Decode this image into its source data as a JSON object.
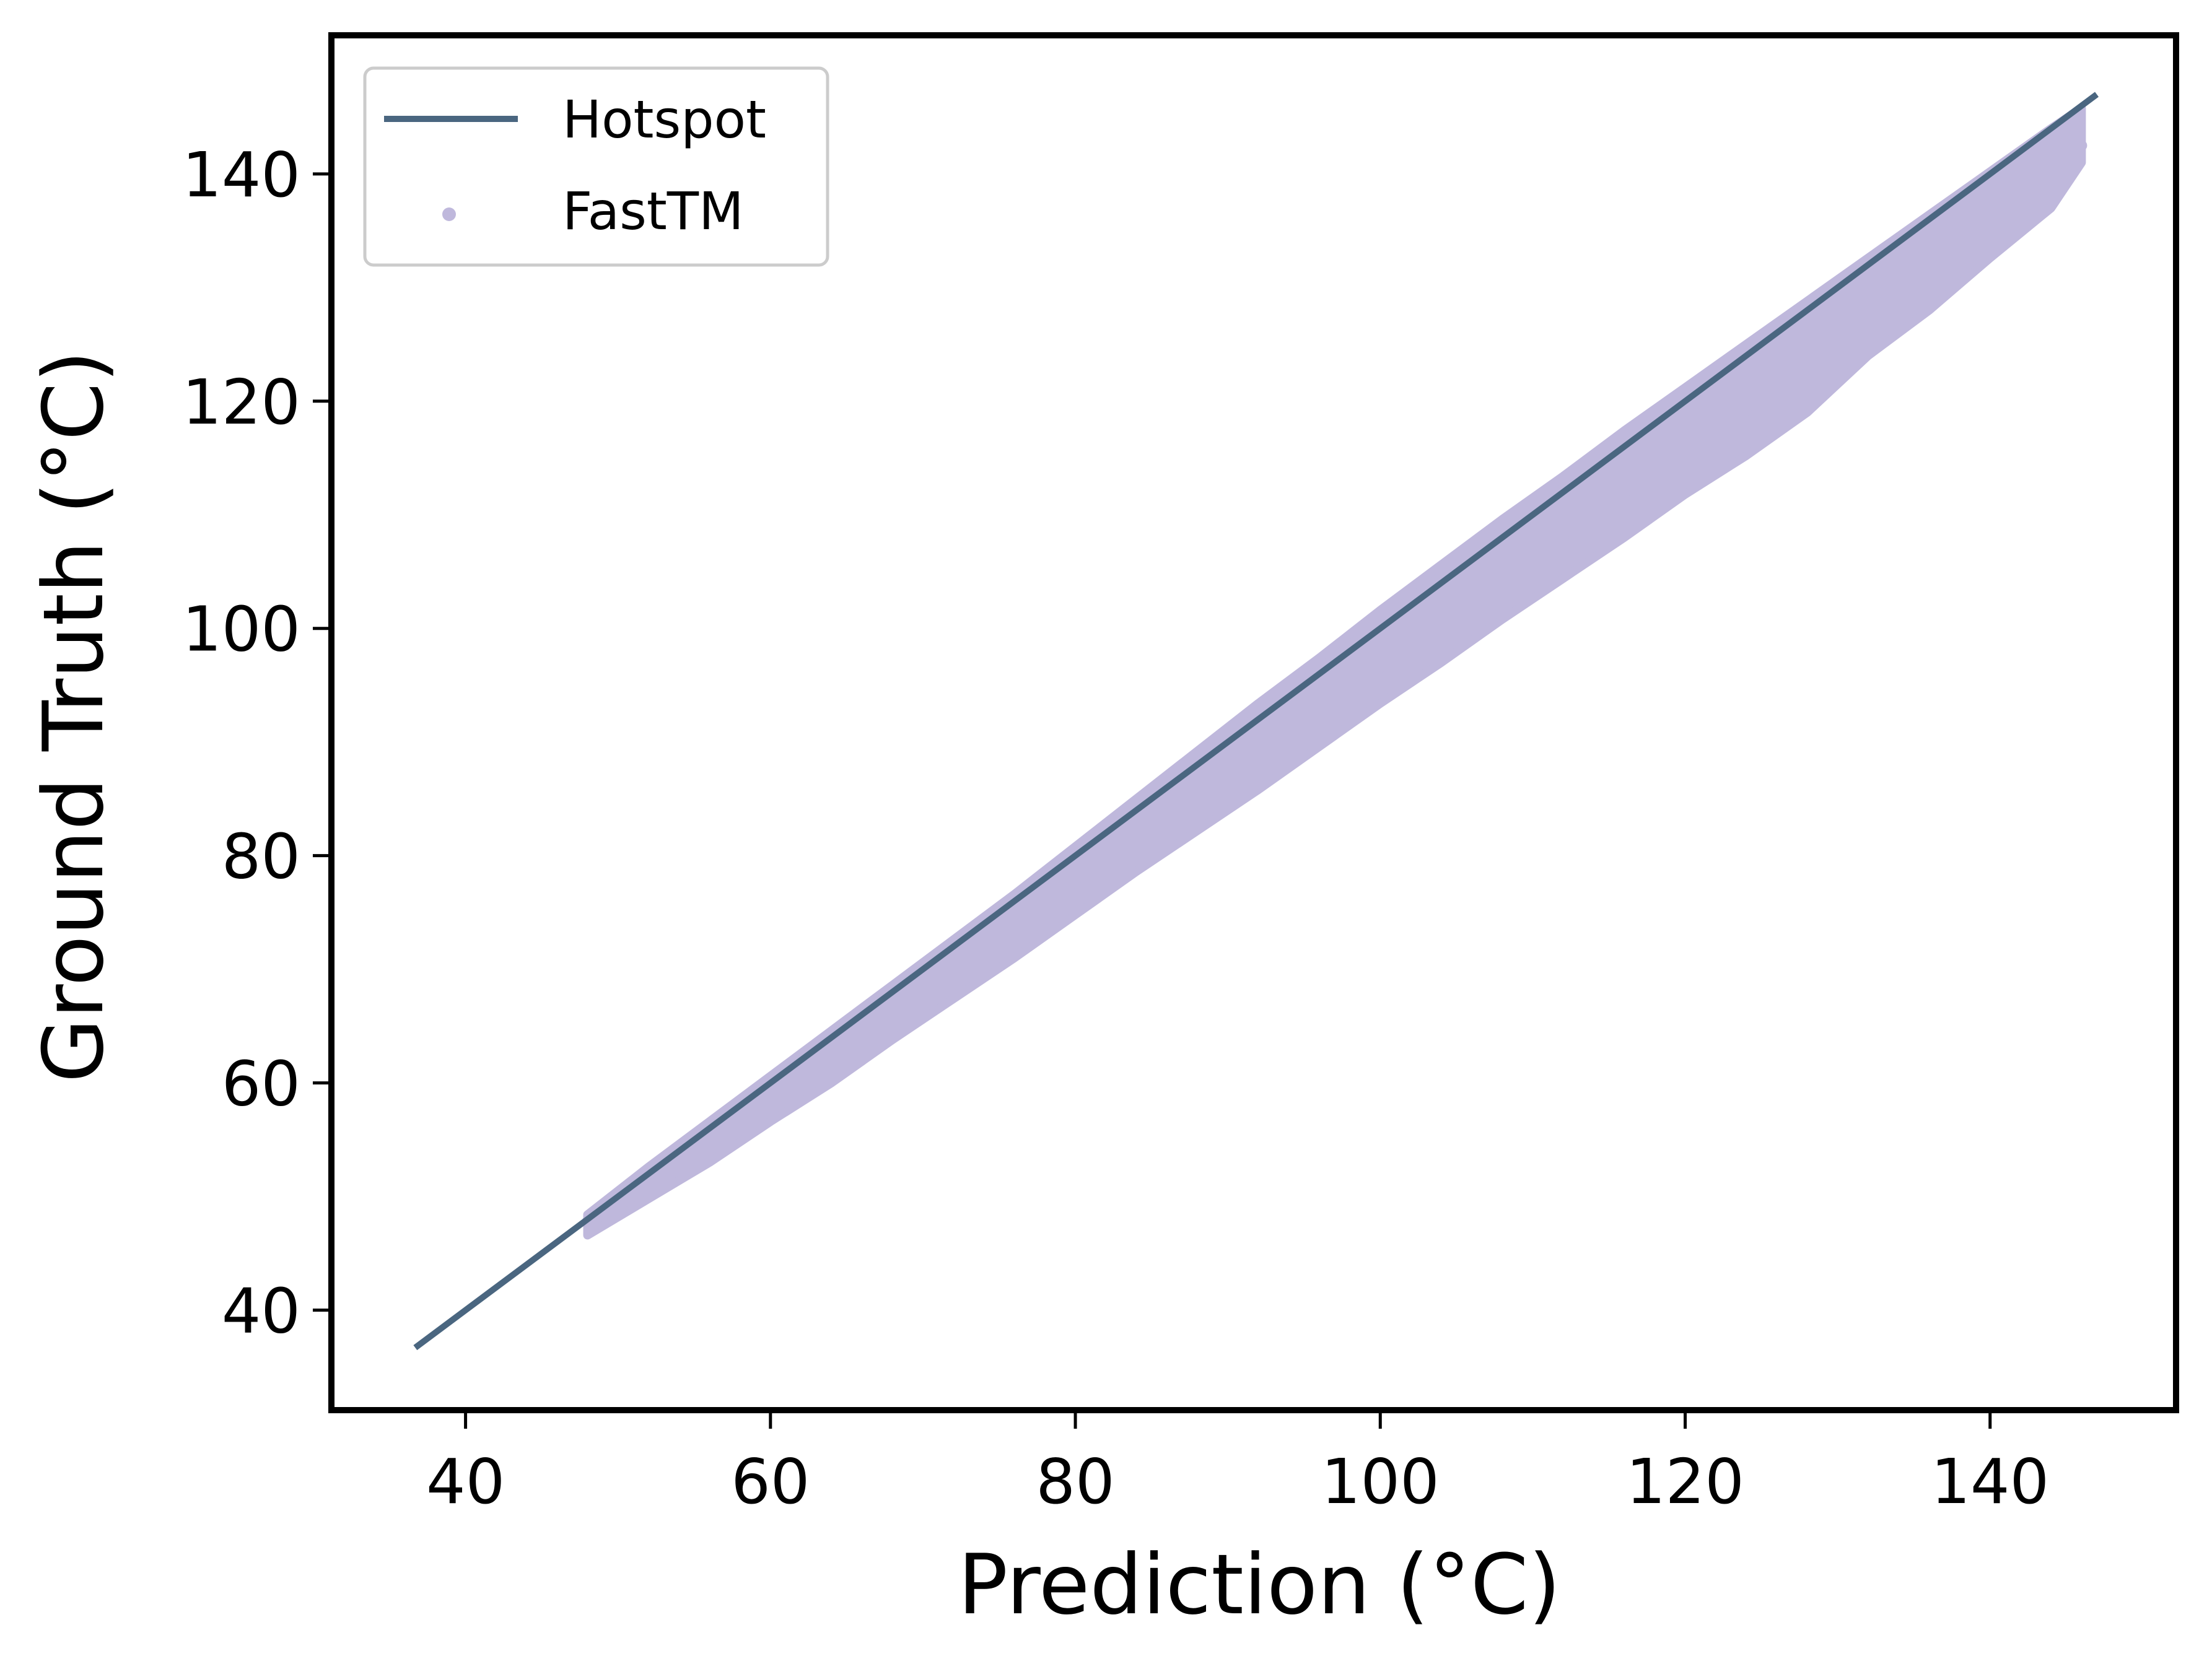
{
  "chart_data": {
    "type": "scatter",
    "xlabel": "Prediction (°C)",
    "ylabel": "Ground Truth (°C)",
    "xlim": [
      31.2,
      152.2
    ],
    "ylim": [
      31.2,
      152.2
    ],
    "x_ticks": [
      40,
      60,
      80,
      100,
      120,
      140
    ],
    "y_ticks": [
      40,
      60,
      80,
      100,
      120,
      140
    ],
    "grid": false,
    "legend_position": "top-left",
    "series": [
      {
        "name": "Hotspot",
        "kind": "line",
        "color": "#4a6680",
        "x": [
          36.7,
          147.0
        ],
        "y": [
          36.7,
          147.0
        ]
      },
      {
        "name": "FastTM",
        "kind": "scatter",
        "color": "#bfb8dc",
        "x": [
          48,
          52,
          56,
          60,
          64,
          68,
          72,
          76,
          80,
          84,
          88,
          92,
          96,
          100,
          104,
          108,
          112,
          116,
          120,
          124,
          128,
          132,
          136,
          140,
          144,
          146
        ],
        "y": [
          47.8,
          51.6,
          55.2,
          58.8,
          62.6,
          66.4,
          70.0,
          73.8,
          77.6,
          81.4,
          85.0,
          89.0,
          92.6,
          96.6,
          100.4,
          104.2,
          108.0,
          111.6,
          115.4,
          119.2,
          123.0,
          127.0,
          131.2,
          135.6,
          140.0,
          142.5
        ],
        "band_low": [
          46.6,
          49.8,
          53.0,
          56.6,
          60.0,
          63.8,
          67.4,
          71.0,
          74.8,
          78.6,
          82.2,
          85.8,
          89.6,
          93.4,
          97.0,
          100.8,
          104.4,
          108.0,
          111.8,
          115.2,
          119.0,
          124.0,
          128.0,
          132.6,
          137.0,
          141.0
        ],
        "band_high": [
          48.4,
          52.6,
          56.6,
          60.6,
          64.6,
          68.6,
          72.6,
          76.6,
          80.8,
          85.0,
          89.2,
          93.4,
          97.4,
          101.6,
          105.6,
          109.6,
          113.4,
          117.4,
          121.2,
          125.0,
          128.8,
          132.6,
          136.4,
          140.2,
          144.0,
          145.8
        ]
      }
    ]
  }
}
